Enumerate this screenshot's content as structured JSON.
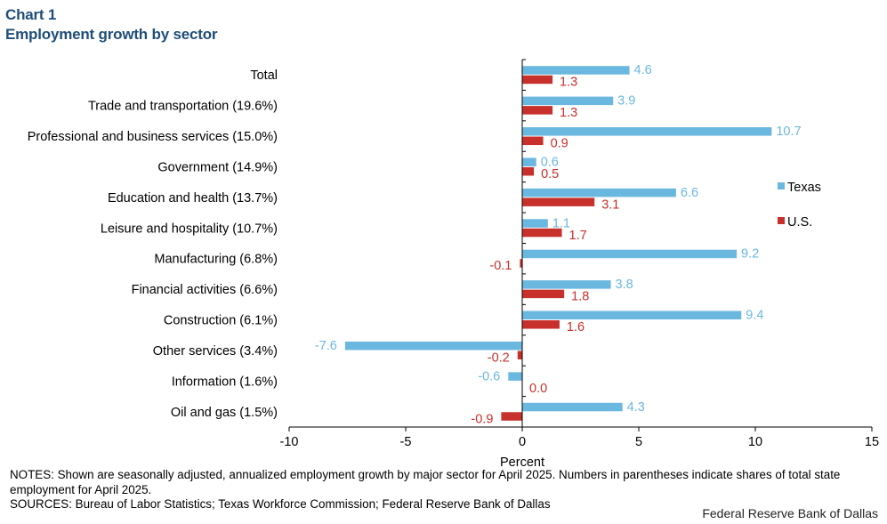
{
  "header": {
    "chart_number": "Chart 1",
    "title": "Employment growth by sector"
  },
  "chart_data": {
    "type": "bar",
    "orientation": "horizontal",
    "title": "Employment growth by sector",
    "xlabel": "Percent",
    "ylabel": "",
    "xlim": [
      -10,
      15
    ],
    "xticks": [
      -10,
      -5,
      0,
      5,
      10,
      15
    ],
    "xtick_labels": [
      "-10",
      "-5",
      "0",
      "5",
      "10",
      "15"
    ],
    "grid": false,
    "legend_position": "right",
    "categories": [
      "Total",
      "Trade and transportation (19.6%)",
      "Professional and business services (15.0%)",
      "Government (14.9%)",
      "Education and health (13.7%)",
      "Leisure and hospitality (10.7%)",
      "Manufacturing (6.8%)",
      "Financial activities (6.6%)",
      "Construction (6.1%)",
      "Other services (3.4%)",
      "Information (1.6%)",
      "Oil and gas (1.5%)"
    ],
    "series": [
      {
        "name": "Texas",
        "color": "#6ab8e0",
        "values": [
          4.6,
          3.9,
          10.7,
          0.6,
          6.6,
          1.1,
          9.2,
          3.8,
          9.4,
          -7.6,
          -0.6,
          4.3
        ],
        "labels": [
          "4.6",
          "3.9",
          "10.7",
          "0.6",
          "6.6",
          "1.1",
          "9.2",
          "3.8",
          "9.4",
          "-7.6",
          "-0.6",
          "4.3"
        ]
      },
      {
        "name": "U.S.",
        "color": "#c8302b",
        "values": [
          1.3,
          1.3,
          0.9,
          0.5,
          3.1,
          1.7,
          -0.1,
          1.8,
          1.6,
          -0.2,
          0.0,
          -0.9
        ],
        "labels": [
          "1.3",
          "1.3",
          "0.9",
          "0.5",
          "3.1",
          "1.7",
          "-0.1",
          "1.8",
          "1.6",
          "-0.2",
          "0.0",
          "-0.9"
        ]
      }
    ]
  },
  "footer": {
    "notes": "NOTES: Shown are seasonally adjusted, annualized employment growth by major sector for April 2025. Numbers in parentheses indicate shares of total state employment for April 2025.",
    "sources": "SOURCES: Bureau of Labor Statistics; Texas Workforce Commission; Federal Reserve Bank of Dallas",
    "credit": "Federal Reserve Bank of Dallas"
  }
}
